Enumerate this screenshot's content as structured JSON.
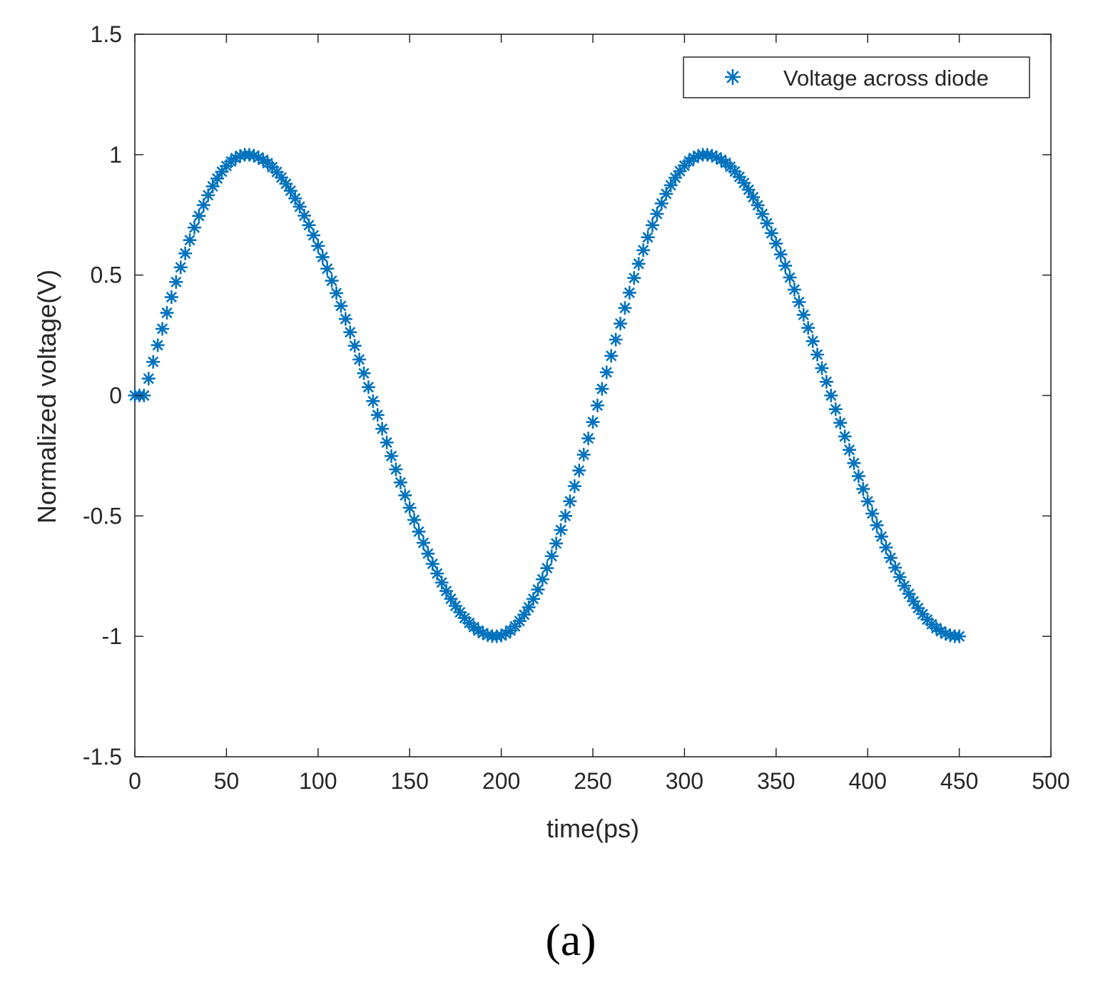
{
  "colors": {
    "series": "#0072BD",
    "axes": "#262626",
    "background": "#ffffff"
  },
  "panel_label": "(a)",
  "chart_data": {
    "type": "scatter",
    "title": "",
    "xlabel": "time(ps)",
    "ylabel": "Normalized voltage(V)",
    "xlim": [
      0,
      500
    ],
    "ylim": [
      -1.5,
      1.5
    ],
    "xticks": [
      0,
      50,
      100,
      150,
      200,
      250,
      300,
      350,
      400,
      450,
      500
    ],
    "xtick_labels": [
      "0",
      "50",
      "100",
      "150",
      "200",
      "250",
      "300",
      "350",
      "400",
      "450",
      "500"
    ],
    "yticks": [
      -1.5,
      -1,
      -0.5,
      0,
      0.5,
      1,
      1.5
    ],
    "ytick_labels": [
      "-1.5",
      "-1",
      "-0.5",
      "0",
      "0.5",
      "1",
      "1.5"
    ],
    "grid": false,
    "legend_position": "top-right",
    "marker": "asterisk",
    "series": [
      {
        "name": "Voltage across diode",
        "x_start": 0,
        "x_end": 452,
        "x_step": 2.5,
        "waveform": {
          "shape": "sine",
          "start_flat_until": 5,
          "peaks": [
            {
              "x": 61,
              "y": 1
            },
            {
              "x": 197,
              "y": -1
            },
            {
              "x": 311,
              "y": 1
            },
            {
              "x": 449,
              "y": -1
            }
          ],
          "end_value": -1
        }
      }
    ]
  }
}
